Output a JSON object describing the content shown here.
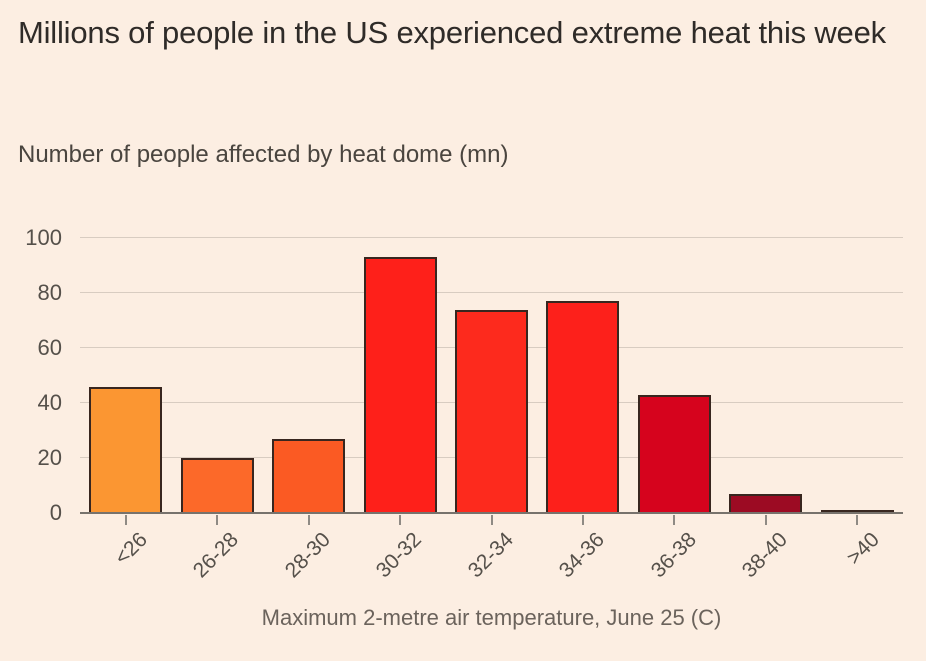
{
  "page": {
    "background_color": "#fceee2"
  },
  "chart_data": {
    "type": "bar",
    "title": "Millions of people in the US experienced extreme heat this week",
    "subtitle": "Number of people affected by heat dome (mn)",
    "xlabel": "Maximum 2-metre air temperature, June 25 (C)",
    "ylabel": "Number of people affected by heat dome (mn)",
    "categories": [
      "<26",
      "26-28",
      "28-30",
      "30-32",
      "32-34",
      "34-36",
      "36-38",
      "38-40",
      ">40"
    ],
    "values": [
      46,
      20,
      27,
      93,
      74,
      77,
      43,
      7,
      0.5
    ],
    "bar_colors": [
      "#fb9632",
      "#fc6929",
      "#fb5a23",
      "#fe201a",
      "#fd2a1d",
      "#fd201b",
      "#d6031d",
      "#9c0b23",
      "#6e0b1c"
    ],
    "bar_border_color": "#38261f",
    "yticks": [
      0,
      20,
      40,
      60,
      80,
      100
    ],
    "ylim": [
      0,
      100
    ],
    "grid": "horizontal-only",
    "gridline_color": "#d8ccc1",
    "axis_color": "#77726c",
    "legend": "none"
  }
}
